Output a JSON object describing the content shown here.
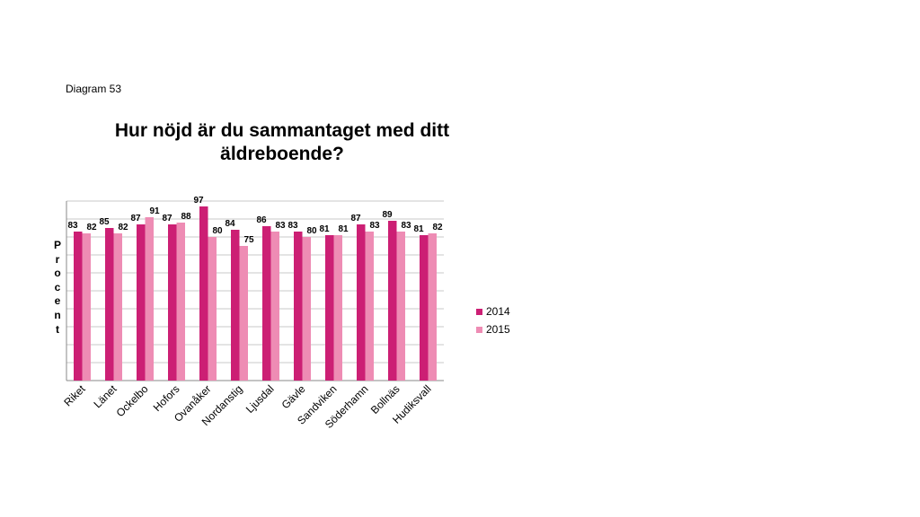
{
  "diagram_label": "Diagram 53",
  "chart_data": {
    "type": "bar",
    "title": "Hur nöjd är du sammantaget med ditt äldreboende?",
    "ylabel": "Procent",
    "xlabel": "",
    "ylim": [
      0,
      100
    ],
    "grid": true,
    "legend_position": "right",
    "categories": [
      "Riket",
      "Länet",
      "Ockelbo",
      "Hofors",
      "Ovanåker",
      "Nordanstig",
      "Ljusdal",
      "Gävle",
      "Sandviken",
      "Söderhamn",
      "Bollnäs",
      "Hudiksvall"
    ],
    "series": [
      {
        "name": "2014",
        "color": "#cc1f74",
        "values": [
          83,
          85,
          87,
          87,
          97,
          84,
          86,
          83,
          81,
          87,
          89,
          81
        ]
      },
      {
        "name": "2015",
        "color": "#ee8cb4",
        "values": [
          82,
          82,
          91,
          88,
          80,
          75,
          83,
          80,
          81,
          83,
          83,
          82
        ]
      }
    ]
  }
}
